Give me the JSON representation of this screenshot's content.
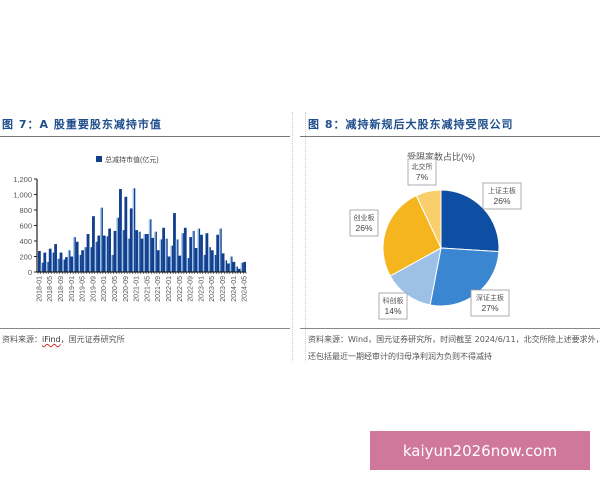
{
  "left_panel": {
    "title": "图 7：A 股重要股东减持市值",
    "source_prefix": "资料来源：",
    "source_link": "iFind",
    "source_suffix": "，国元证券研究所"
  },
  "right_panel": {
    "title": "图 8：减持新规后大股东减持受限公司",
    "source_line1": "资料来源：Wind，国元证券研究所，时间截至 2024/6/11，北交所除上述要求外，",
    "source_line2": "还包括最近一期经审计的归母净利润为负则不得减持"
  },
  "watermark": {
    "text": "kaiyun2026now.com"
  },
  "colors": {
    "bar_dark": "#123f8c",
    "bar_light": "#9fc3ea",
    "title_blue": "#1f4e8c",
    "pie_shanghai": "#0e4ea3",
    "pie_shenzhen": "#3b86d0",
    "pie_kechuang": "#9dc1e6",
    "pie_chuangye": "#f5b51f",
    "pie_beijiao": "#f8cf6a"
  },
  "chart_data": [
    {
      "type": "bar",
      "title": "A股重要股东减持市值",
      "legend": [
        "总减持市值(亿元)"
      ],
      "legend_position": "top",
      "xlabel": "",
      "ylabel": "",
      "ylim": [
        0,
        1200
      ],
      "yticks": [
        0,
        200,
        400,
        600,
        800,
        1000,
        1200
      ],
      "ytick_labels": [
        "0",
        "200",
        "400",
        "600",
        "800",
        "1,000",
        "1,200"
      ],
      "xtick_labels": [
        "2018-01",
        "2018-05",
        "2018-09",
        "2019-01",
        "2019-05",
        "2019-09",
        "2020-01",
        "2020-05",
        "2020-09",
        "2021-01",
        "2021-05",
        "2021-09",
        "2022-01",
        "2022-05",
        "2022-09",
        "2023-01",
        "2023-05",
        "2023-09",
        "2024-01",
        "2024-05"
      ],
      "grid": false,
      "categories": [
        "2018-01",
        "2018-02",
        "2018-03",
        "2018-04",
        "2018-05",
        "2018-06",
        "2018-07",
        "2018-08",
        "2018-09",
        "2018-10",
        "2018-11",
        "2018-12",
        "2019-01",
        "2019-02",
        "2019-03",
        "2019-04",
        "2019-05",
        "2019-06",
        "2019-07",
        "2019-08",
        "2019-09",
        "2019-10",
        "2019-11",
        "2019-12",
        "2020-01",
        "2020-02",
        "2020-03",
        "2020-04",
        "2020-05",
        "2020-06",
        "2020-07",
        "2020-08",
        "2020-09",
        "2020-10",
        "2020-11",
        "2020-12",
        "2021-01",
        "2021-02",
        "2021-03",
        "2021-04",
        "2021-05",
        "2021-06",
        "2021-07",
        "2021-08",
        "2021-09",
        "2021-10",
        "2021-11",
        "2021-12",
        "2022-01",
        "2022-02",
        "2022-03",
        "2022-04",
        "2022-05",
        "2022-06",
        "2022-07",
        "2022-08",
        "2022-09",
        "2022-10",
        "2022-11",
        "2022-12",
        "2023-01",
        "2023-02",
        "2023-03",
        "2023-04",
        "2023-05",
        "2023-06",
        "2023-07",
        "2023-08",
        "2023-09",
        "2023-10",
        "2023-11",
        "2023-12",
        "2024-01",
        "2024-02",
        "2024-03",
        "2024-04",
        "2024-05"
      ],
      "series": [
        {
          "name": "总减持市值(亿元)",
          "values": [
            270,
            120,
            250,
            130,
            300,
            250,
            360,
            170,
            250,
            160,
            190,
            280,
            200,
            450,
            390,
            220,
            280,
            320,
            490,
            320,
            720,
            390,
            470,
            830,
            470,
            460,
            560,
            220,
            530,
            700,
            1070,
            540,
            970,
            430,
            820,
            1080,
            540,
            520,
            430,
            490,
            490,
            680,
            440,
            520,
            280,
            420,
            570,
            430,
            200,
            340,
            760,
            420,
            210,
            500,
            570,
            180,
            450,
            530,
            310,
            560,
            480,
            220,
            500,
            320,
            280,
            220,
            480,
            560,
            240,
            150,
            110,
            200,
            130,
            70,
            40,
            120,
            130
          ]
        }
      ]
    },
    {
      "type": "pie",
      "title": "受限家数占比(%)",
      "categories": [
        "上证主板",
        "深证主板",
        "科创板",
        "创业板",
        "北交所"
      ],
      "values": [
        26,
        27,
        14,
        26,
        7
      ],
      "labels": [
        "26%",
        "27%",
        "14%",
        "26%",
        "7%"
      ]
    }
  ]
}
